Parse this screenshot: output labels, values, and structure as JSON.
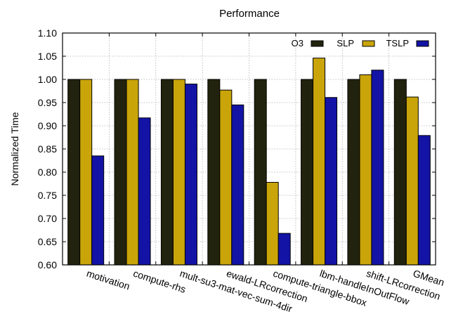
{
  "chart_data": {
    "type": "bar",
    "title": "Performance",
    "xlabel": "",
    "ylabel": "Normalized Time",
    "ylim": [
      0.6,
      1.1
    ],
    "yticks": [
      "0.60",
      "0.65",
      "0.70",
      "0.75",
      "0.80",
      "0.85",
      "0.90",
      "0.95",
      "1.00",
      "1.05",
      "1.10"
    ],
    "grid": "both",
    "legend_position": "top-right",
    "categories": [
      "motivation",
      "compute-rhs",
      "mult-su3-mat-vec-sum-4dir",
      "ewald-LRcorrection",
      "compute-triangle-bbox",
      "lbm-handleInOutFlow",
      "shift-LRcorrection",
      "GMean"
    ],
    "series": [
      {
        "name": "O3",
        "color": "#22230e",
        "values": [
          1.0,
          1.0,
          1.0,
          1.0,
          1.0,
          1.0,
          1.0,
          1.0
        ]
      },
      {
        "name": "SLP",
        "color": "#c9a50a",
        "values": [
          1.0,
          1.0,
          1.0,
          0.977,
          0.778,
          1.046,
          1.01,
          0.962
        ]
      },
      {
        "name": "TSLP",
        "color": "#1313a6",
        "values": [
          0.835,
          0.917,
          0.99,
          0.945,
          0.668,
          0.961,
          1.02,
          0.879
        ]
      }
    ]
  }
}
